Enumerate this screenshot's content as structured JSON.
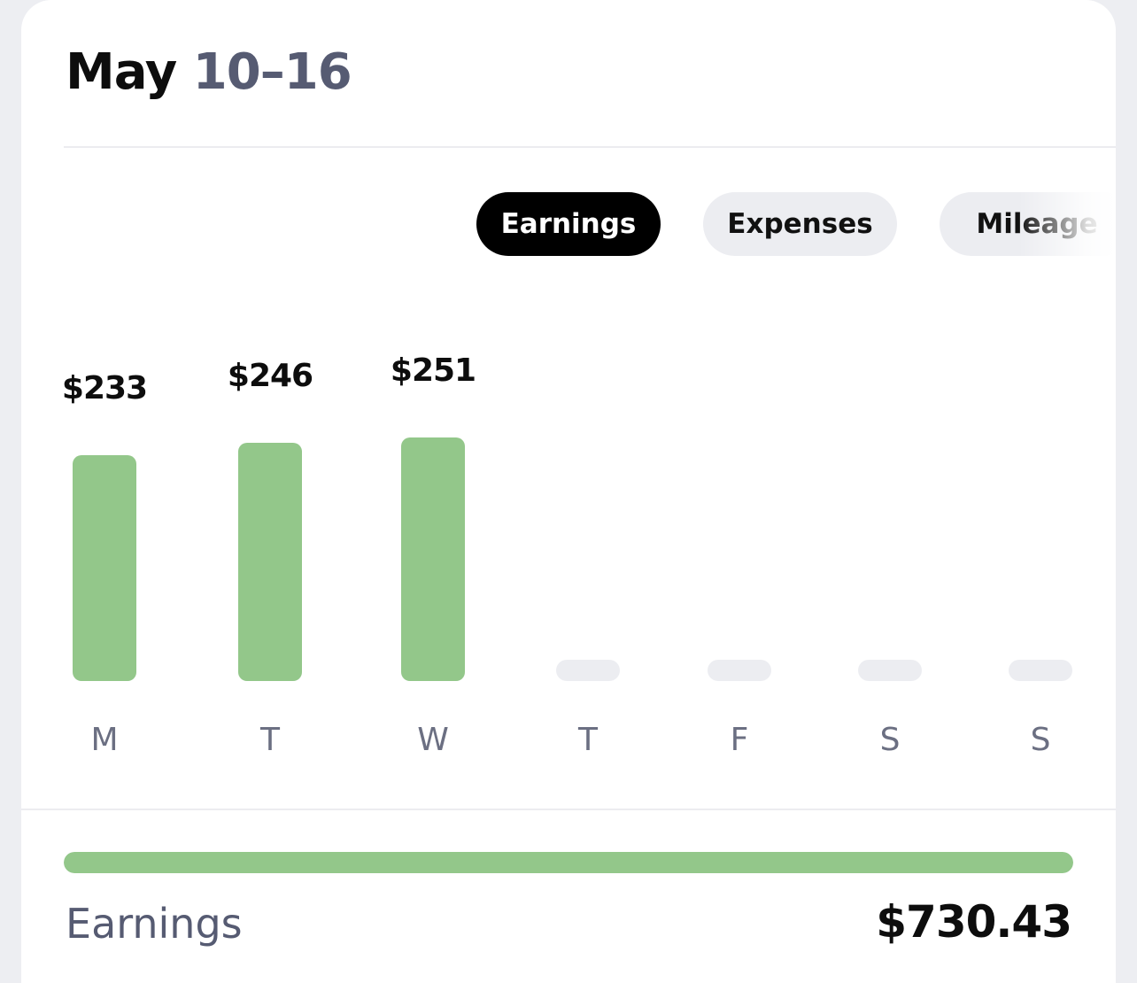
{
  "header": {
    "month": "May",
    "range": "10–16"
  },
  "tabs": [
    {
      "label": "Earnings",
      "active": true
    },
    {
      "label": "Expenses",
      "active": false
    },
    {
      "label": "Mileage",
      "active": false
    }
  ],
  "chart_data": {
    "type": "bar",
    "categories": [
      "M",
      "T",
      "W",
      "T",
      "F",
      "S",
      "S"
    ],
    "values": [
      233,
      246,
      251,
      null,
      null,
      null,
      null
    ],
    "value_labels": [
      "$233",
      "$246",
      "$251",
      "",
      "",
      "",
      ""
    ],
    "bar_color": "#93c78a",
    "empty_color": "#ecedf1"
  },
  "summary": {
    "label": "Earnings",
    "total": "$730.43",
    "progress_fraction": 1.0
  },
  "colors": {
    "accent_green": "#93c78a",
    "muted_text": "#565b72",
    "active_tab_bg": "#000000",
    "inactive_tab_bg": "#ecedf1"
  }
}
